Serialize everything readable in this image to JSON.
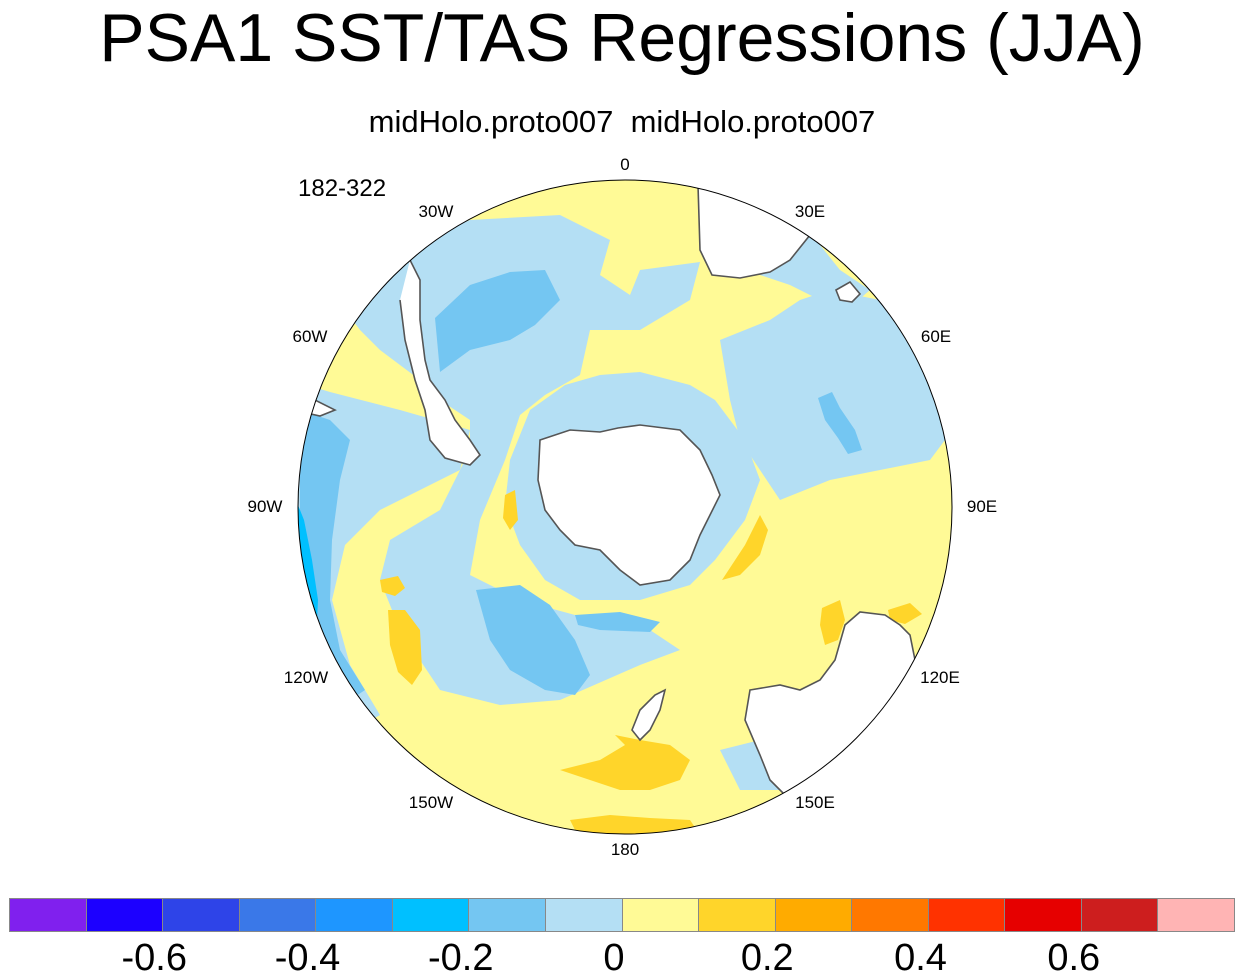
{
  "title": "PSA1 SST/TAS Regressions (JJA)",
  "subtitle": "midHolo.proto007  midHolo.proto007",
  "years_label": "182-322",
  "projection": "south-polar-stereographic",
  "longitude_labels": {
    "lon_0": "0",
    "lon_30e": "30E",
    "lon_60e": "60E",
    "lon_90e": "90E",
    "lon_120e": "120E",
    "lon_150e": "150E",
    "lon_180": "180",
    "lon_150w": "150W",
    "lon_120w": "120W",
    "lon_90w": "90W",
    "lon_60w": "60W",
    "lon_30w": "30W"
  },
  "colorbar": {
    "colors": [
      "#8020ee",
      "#1c00ff",
      "#2e44e8",
      "#3a78e8",
      "#1e96ff",
      "#00c0ff",
      "#74c6f2",
      "#b4dff4",
      "#fffa96",
      "#ffd52a",
      "#ffab00",
      "#ff7800",
      "#ff3200",
      "#e60000",
      "#cd1e1e",
      "#ffb4b4"
    ],
    "ticks": [
      "-0.6",
      "-0.4",
      "-0.2",
      "0",
      "0.2",
      "0.4",
      "0.6"
    ]
  },
  "colors": {
    "weak_positive": "#fffa96",
    "moderate_positive": "#ffd52a",
    "weak_negative": "#b4dff4",
    "moderate_negative": "#74c6f2",
    "strong_negative": "#00c0ff",
    "land": "#ffffff",
    "coastline": "#555555"
  }
}
